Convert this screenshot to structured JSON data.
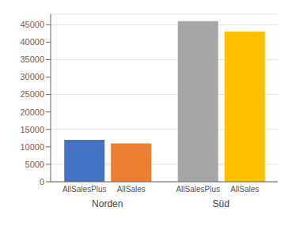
{
  "chart_data": {
    "type": "bar",
    "categories": [
      "Norden",
      "Süd"
    ],
    "series": [
      {
        "name": "AllSalesPlus",
        "colors": [
          "#4472c4",
          "#a6a6a6"
        ],
        "values": [
          12000,
          46000
        ]
      },
      {
        "name": "AllSales",
        "colors": [
          "#ed7d31",
          "#ffc000"
        ],
        "values": [
          11000,
          43000
        ]
      }
    ],
    "ylim": [
      0,
      48000
    ],
    "yticks": [
      0,
      5000,
      10000,
      15000,
      20000,
      25000,
      30000,
      35000,
      40000,
      45000
    ],
    "grid": true
  }
}
